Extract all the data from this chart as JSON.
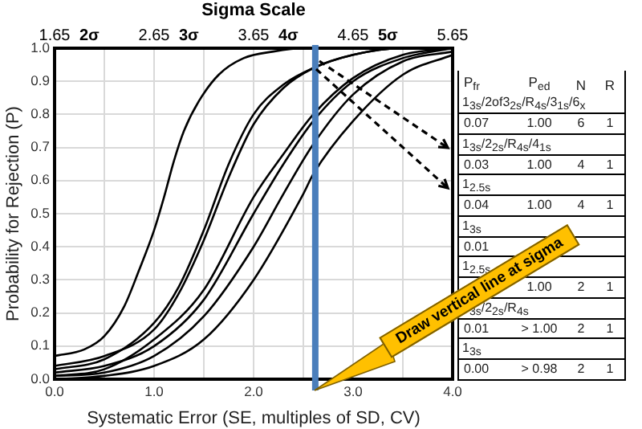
{
  "chart_data": [
    {
      "type": "line",
      "xlabel": "Systematic Error (SE, multiples of SD, CV)",
      "ylabel": "Probability for Rejection (P)",
      "x2label": "Sigma Scale",
      "xlim": [
        0,
        4
      ],
      "xticks": [
        {
          "value": 0,
          "label": "0.0"
        },
        {
          "value": 0.5,
          "label": null
        },
        {
          "value": 1,
          "label": "1.0"
        },
        {
          "value": 1.5,
          "label": null
        },
        {
          "value": 2,
          "label": "2.0"
        },
        {
          "value": 2.5,
          "label": null
        },
        {
          "value": 3,
          "label": "3.0"
        },
        {
          "value": 3.5,
          "label": null
        },
        {
          "value": 4,
          "label": "4.0"
        }
      ],
      "ylim": [
        0,
        1
      ],
      "yticks": [
        {
          "value": 0,
          "label": "0.0"
        },
        0.1,
        0.2,
        0.3,
        0.4,
        0.5,
        0.6,
        0.7,
        0.8,
        0.9,
        {
          "value": 1,
          "label": "1.0"
        }
      ],
      "x2lim": [
        1.65,
        5.65
      ],
      "x2ticks": [
        1.65,
        {
          "value": 2,
          "label": "2σ"
        },
        2.65,
        {
          "value": 3,
          "label": "3σ"
        },
        3.65,
        {
          "value": 4,
          "label": "4σ"
        },
        4.65,
        {
          "value": 5,
          "label": "5σ"
        },
        5.65
      ],
      "grid": true,
      "legend": false,
      "series": [
        {
          "color": "#000000",
          "x": [
            0,
            0.3,
            0.5,
            0.7,
            0.85,
            1.0,
            1.1,
            1.2,
            1.3,
            1.45,
            1.65,
            1.9,
            2.2,
            2.5,
            4
          ],
          "values": [
            0.07,
            0.09,
            0.13,
            0.22,
            0.33,
            0.45,
            0.55,
            0.66,
            0.75,
            0.84,
            0.92,
            0.97,
            0.99,
            1,
            1
          ]
        },
        {
          "color": "#000000",
          "x": [
            0,
            0.5,
            1.0,
            1.25,
            1.5,
            1.75,
            2.0,
            2.3,
            2.6,
            3.0,
            3.5,
            4
          ],
          "values": [
            0.03,
            0.06,
            0.17,
            0.28,
            0.45,
            0.65,
            0.8,
            0.89,
            0.94,
            0.98,
            1,
            1
          ]
        },
        {
          "color": "#000000",
          "x": [
            0,
            0.5,
            1.0,
            1.25,
            1.5,
            1.75,
            2.0,
            2.3,
            2.6,
            3.0,
            3.5,
            4
          ],
          "values": [
            0.04,
            0.07,
            0.15,
            0.26,
            0.42,
            0.61,
            0.77,
            0.88,
            0.94,
            0.98,
            1,
            1
          ]
        },
        {
          "color": "#000000",
          "x": [
            0,
            0.5,
            1.0,
            1.5,
            2.0,
            2.3,
            2.6,
            3.0,
            3.5,
            4
          ],
          "values": [
            0.01,
            0.03,
            0.12,
            0.27,
            0.55,
            0.68,
            0.8,
            0.91,
            0.98,
            1
          ]
        },
        {
          "color": "#000000",
          "x": [
            0,
            0.5,
            1.0,
            1.5,
            2.0,
            2.3,
            2.6,
            3.0,
            3.5,
            4
          ],
          "values": [
            0.02,
            0.04,
            0.1,
            0.24,
            0.5,
            0.65,
            0.78,
            0.9,
            0.97,
            1
          ]
        },
        {
          "color": "#000000",
          "x": [
            0,
            0.5,
            1.0,
            1.5,
            2.0,
            2.3,
            2.6,
            3.0,
            3.5,
            4
          ],
          "values": [
            0.01,
            0.02,
            0.07,
            0.19,
            0.4,
            0.56,
            0.71,
            0.86,
            0.96,
            0.99
          ]
        },
        {
          "color": "#000000",
          "x": [
            0,
            0.5,
            1.0,
            1.5,
            2.0,
            2.5,
            2.6,
            3.0,
            3.5,
            4
          ],
          "values": [
            0,
            0.01,
            0.04,
            0.12,
            0.3,
            0.56,
            0.62,
            0.78,
            0.92,
            0.98
          ]
        }
      ],
      "ref_lines": [
        {
          "axis": "x",
          "value": 2.62,
          "color": "#4a7ebb"
        }
      ],
      "annotations": [
        "Draw vertical line at sigma"
      ]
    },
    {
      "type": "other",
      "annotations": [
        "P$_{fr}$",
        "P$_{ed}$",
        "N",
        "R",
        "1$_{3s}$/2of3$_{2s}$/R$_{4s}$/3$_{1s}$/6$_{x}$",
        "0.07",
        "1.00",
        "6",
        "1",
        "1$_{3s}$/2$_{2s}$/R$_{4s}$/4$_{1s}$",
        "0.03",
        "1.00",
        "4",
        "1",
        "1$_{2.5s}$",
        "0.04",
        "1.00",
        "4",
        "1",
        "1$_{3s}$",
        "0.01",
        null,
        null,
        null,
        "1$_{2.5s}$",
        null,
        "1.00",
        "2",
        "1",
        "1$_{3s}$/2$_{2s}$/R$_{4s}$",
        "0.01",
        "> 1.00",
        "2",
        "1",
        "1$_{3s}$",
        "0.00",
        "> 0.98",
        "2",
        "1"
      ]
    }
  ]
}
